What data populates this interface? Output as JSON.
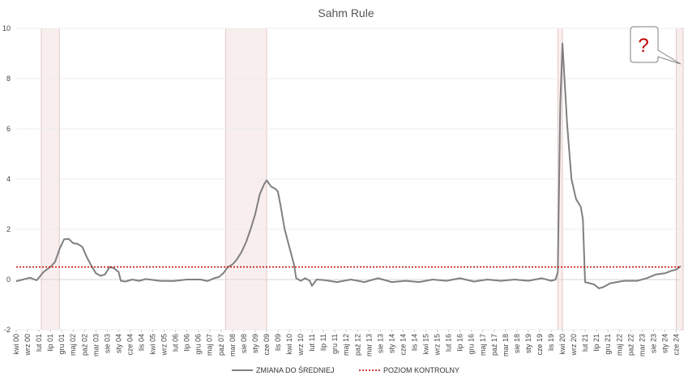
{
  "chart_data": {
    "type": "line",
    "title": "Sahm Rule",
    "ylim": [
      -2,
      10
    ],
    "yticks": [
      "-2",
      "0",
      "2",
      "4",
      "6",
      "8",
      "10"
    ],
    "xticks": [
      "kwi 00",
      "wrz 00",
      "lut 01",
      "lip 01",
      "gru 01",
      "maj 02",
      "paź 02",
      "mar 03",
      "sie 03",
      "sty 04",
      "cze 04",
      "lis 04",
      "kwi 05",
      "wrz 05",
      "lut 06",
      "lip 06",
      "gru 06",
      "maj 07",
      "paź 07",
      "mar 08",
      "sie 08",
      "sty 09",
      "cze 09",
      "lis 09",
      "kwi 10",
      "wrz 10",
      "lut 11",
      "lip 11",
      "gru 11",
      "maj 12",
      "paź 12",
      "mar 13",
      "sie 13",
      "sty 14",
      "cze 14",
      "lis 14",
      "kwi 15",
      "wrz 15",
      "lut 16",
      "lip 16",
      "gru 16",
      "maj 17",
      "paź 17",
      "mar 18",
      "sie 18",
      "sty 19",
      "cze 19",
      "lis 19",
      "kwi 20",
      "wrz 20",
      "lut 21",
      "lip 21",
      "gru 21",
      "maj 22",
      "paź 22",
      "mar 23",
      "sie 23",
      "sty 24",
      "cze 24"
    ],
    "recessions": [
      [
        2001.17,
        2001.83
      ],
      [
        2007.92,
        2009.42
      ],
      [
        2020.08,
        2020.25
      ],
      [
        2024.42,
        2024.67
      ]
    ],
    "series": [
      {
        "name": "ZMIANA DO ŚREDNIEJ",
        "color": "#808080",
        "style": "solid",
        "points": [
          [
            2000.25,
            -0.07
          ],
          [
            2000.5,
            0.0
          ],
          [
            2000.75,
            0.07
          ],
          [
            2001.0,
            -0.03
          ],
          [
            2001.25,
            0.3
          ],
          [
            2001.5,
            0.5
          ],
          [
            2001.67,
            0.7
          ],
          [
            2001.83,
            1.2
          ],
          [
            2002.0,
            1.6
          ],
          [
            2002.17,
            1.62
          ],
          [
            2002.33,
            1.45
          ],
          [
            2002.5,
            1.42
          ],
          [
            2002.67,
            1.3
          ],
          [
            2002.83,
            0.9
          ],
          [
            2003.0,
            0.55
          ],
          [
            2003.17,
            0.25
          ],
          [
            2003.33,
            0.15
          ],
          [
            2003.5,
            0.2
          ],
          [
            2003.67,
            0.5
          ],
          [
            2003.83,
            0.45
          ],
          [
            2004.0,
            0.3
          ],
          [
            2004.08,
            -0.05
          ],
          [
            2004.25,
            -0.08
          ],
          [
            2004.5,
            0.0
          ],
          [
            2004.75,
            -0.05
          ],
          [
            2005.0,
            0.02
          ],
          [
            2005.5,
            -0.05
          ],
          [
            2006.0,
            -0.06
          ],
          [
            2006.5,
            0.0
          ],
          [
            2007.0,
            0.0
          ],
          [
            2007.25,
            -0.06
          ],
          [
            2007.5,
            0.05
          ],
          [
            2007.67,
            0.1
          ],
          [
            2007.83,
            0.25
          ],
          [
            2008.0,
            0.5
          ],
          [
            2008.17,
            0.6
          ],
          [
            2008.33,
            0.8
          ],
          [
            2008.5,
            1.1
          ],
          [
            2008.67,
            1.5
          ],
          [
            2008.83,
            2.0
          ],
          [
            2009.0,
            2.6
          ],
          [
            2009.17,
            3.4
          ],
          [
            2009.33,
            3.8
          ],
          [
            2009.42,
            3.95
          ],
          [
            2009.58,
            3.7
          ],
          [
            2009.75,
            3.6
          ],
          [
            2009.83,
            3.5
          ],
          [
            2009.92,
            3.0
          ],
          [
            2010.08,
            2.0
          ],
          [
            2010.25,
            1.3
          ],
          [
            2010.42,
            0.6
          ],
          [
            2010.5,
            0.05
          ],
          [
            2010.67,
            -0.05
          ],
          [
            2010.83,
            0.05
          ],
          [
            2011.0,
            -0.05
          ],
          [
            2011.08,
            -0.25
          ],
          [
            2011.25,
            0.0
          ],
          [
            2011.5,
            -0.02
          ],
          [
            2012.0,
            -0.1
          ],
          [
            2012.5,
            0.0
          ],
          [
            2013.0,
            -0.1
          ],
          [
            2013.5,
            0.05
          ],
          [
            2014.0,
            -0.1
          ],
          [
            2014.5,
            -0.05
          ],
          [
            2015.0,
            -0.1
          ],
          [
            2015.5,
            0.0
          ],
          [
            2016.0,
            -0.05
          ],
          [
            2016.5,
            0.05
          ],
          [
            2017.0,
            -0.08
          ],
          [
            2017.5,
            0.0
          ],
          [
            2018.0,
            -0.05
          ],
          [
            2018.5,
            0.0
          ],
          [
            2019.0,
            -0.05
          ],
          [
            2019.5,
            0.05
          ],
          [
            2019.83,
            -0.05
          ],
          [
            2020.0,
            0.0
          ],
          [
            2020.08,
            0.3
          ],
          [
            2020.17,
            7.0
          ],
          [
            2020.25,
            9.4
          ],
          [
            2020.42,
            6.2
          ],
          [
            2020.58,
            4.0
          ],
          [
            2020.75,
            3.2
          ],
          [
            2020.92,
            2.9
          ],
          [
            2021.0,
            2.4
          ],
          [
            2021.08,
            -0.1
          ],
          [
            2021.25,
            -0.15
          ],
          [
            2021.42,
            -0.2
          ],
          [
            2021.58,
            -0.35
          ],
          [
            2021.75,
            -0.3
          ],
          [
            2022.0,
            -0.15
          ],
          [
            2022.5,
            -0.05
          ],
          [
            2023.0,
            -0.05
          ],
          [
            2023.33,
            0.05
          ],
          [
            2023.67,
            0.2
          ],
          [
            2024.0,
            0.25
          ],
          [
            2024.25,
            0.35
          ],
          [
            2024.42,
            0.4
          ],
          [
            2024.58,
            0.53
          ]
        ]
      },
      {
        "name": "POZIOM KONTROLNY",
        "color": "#c00000",
        "style": "dotted",
        "value": 0.5
      }
    ],
    "legend_position": "bottom-center",
    "annotation": "?"
  }
}
